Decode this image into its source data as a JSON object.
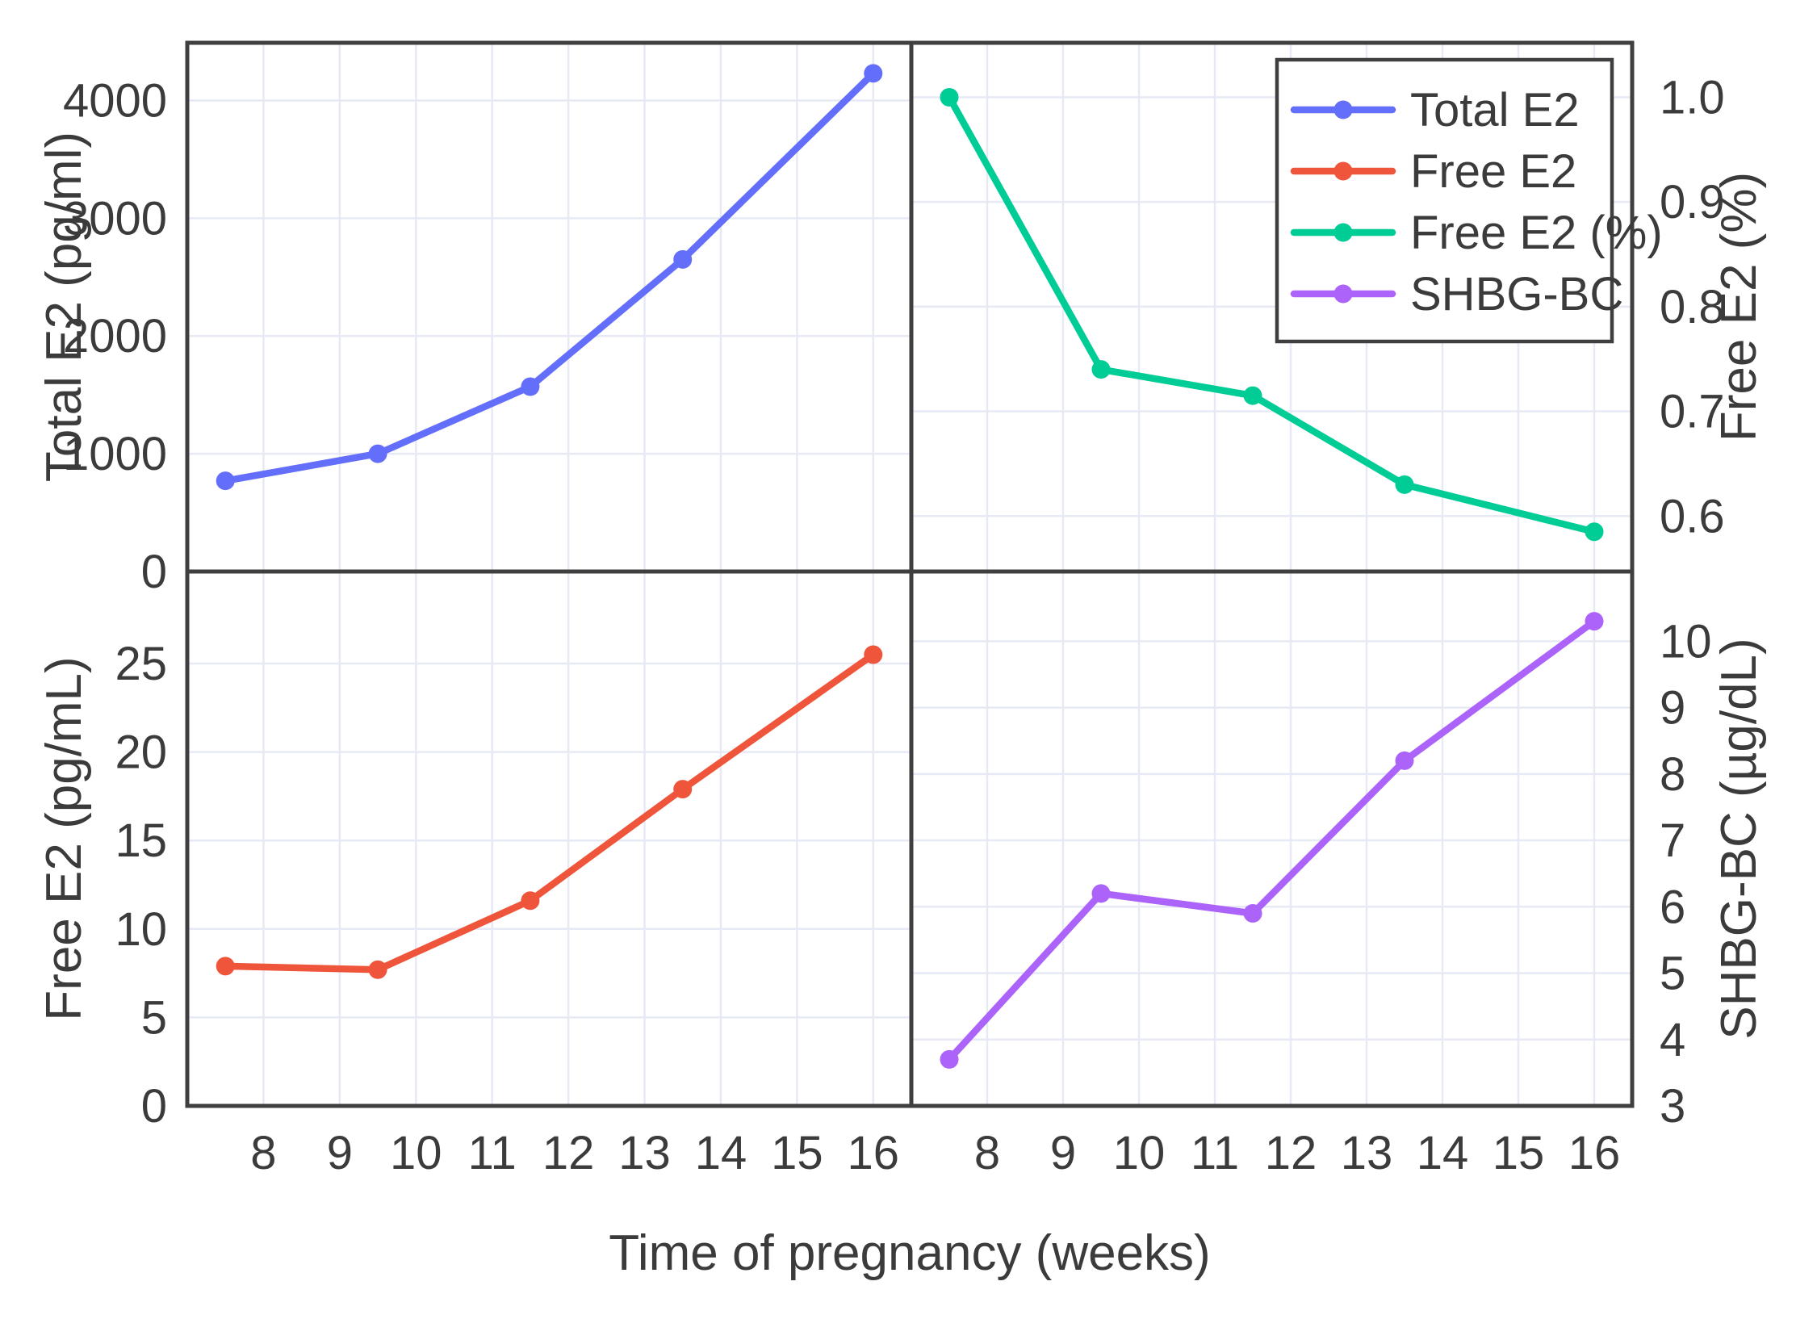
{
  "figure": {
    "background": "#FFFFFF",
    "grid_color": "#E7EAF5",
    "spine_color": "#3F3F3F",
    "text_color": "#3B3B3B",
    "grid_on": true
  },
  "x_axis": {
    "label": "Time of pregnancy (weeks)",
    "ticks": [
      8,
      9,
      10,
      11,
      12,
      13,
      14,
      15,
      16
    ],
    "range": [
      7.0,
      16.5
    ]
  },
  "legend": {
    "position": "top-right-panel",
    "entries": [
      {
        "label": "Total E2",
        "color": "#636EFA"
      },
      {
        "label": "Free E2",
        "color": "#EF553B"
      },
      {
        "label": "Free E2 (%)",
        "color": "#00CC96"
      },
      {
        "label": "SHBG-BC",
        "color": "#AB63FA"
      }
    ]
  },
  "chart_data": [
    {
      "type": "line",
      "panel": "top-left",
      "series_name": "Total E2",
      "color": "#636EFA",
      "marker": "circle",
      "x": [
        7.5,
        9.5,
        11.5,
        13.5,
        16
      ],
      "y": [
        770,
        1000,
        1570,
        2650,
        4230
      ],
      "ylabel": "Total E2 (pg/ml)",
      "ylabel_side": "left",
      "yticks": [
        0,
        1000,
        2000,
        3000,
        4000
      ],
      "tick_decimals": 0,
      "ylim": [
        0,
        4490
      ]
    },
    {
      "type": "line",
      "panel": "top-right",
      "series_name": "Free E2 (%)",
      "color": "#00CC96",
      "marker": "circle",
      "x": [
        7.5,
        9.5,
        11.5,
        13.5,
        16
      ],
      "y": [
        1.0,
        0.74,
        0.715,
        0.63,
        0.585
      ],
      "ylabel": "Free E2 (%)",
      "ylabel_side": "right",
      "yticks": [
        0.6,
        0.7,
        0.8,
        0.9,
        1.0
      ],
      "tick_decimals": 1,
      "ylim": [
        0.547,
        1.052
      ]
    },
    {
      "type": "line",
      "panel": "bottom-left",
      "series_name": "Free E2",
      "color": "#EF553B",
      "marker": "circle",
      "x": [
        7.5,
        9.5,
        11.5,
        13.5,
        16
      ],
      "y": [
        7.9,
        7.7,
        11.6,
        17.9,
        25.5
      ],
      "ylabel": "Free E2 (pg/mL)",
      "ylabel_side": "left",
      "yticks": [
        0,
        5,
        10,
        15,
        20,
        25
      ],
      "tick_decimals": 0,
      "ylim": [
        0,
        30.2
      ]
    },
    {
      "type": "line",
      "panel": "bottom-right",
      "series_name": "SHBG-BC",
      "color": "#AB63FA",
      "marker": "circle",
      "x": [
        7.5,
        9.5,
        11.5,
        13.5,
        16
      ],
      "y": [
        3.7,
        6.2,
        5.9,
        8.2,
        10.3
      ],
      "ylabel": "SHBG-BC (µg/dL)",
      "ylabel_side": "right",
      "yticks": [
        3,
        4,
        5,
        6,
        7,
        8,
        9,
        10
      ],
      "tick_decimals": 0,
      "ylim": [
        3,
        11.05
      ]
    }
  ]
}
